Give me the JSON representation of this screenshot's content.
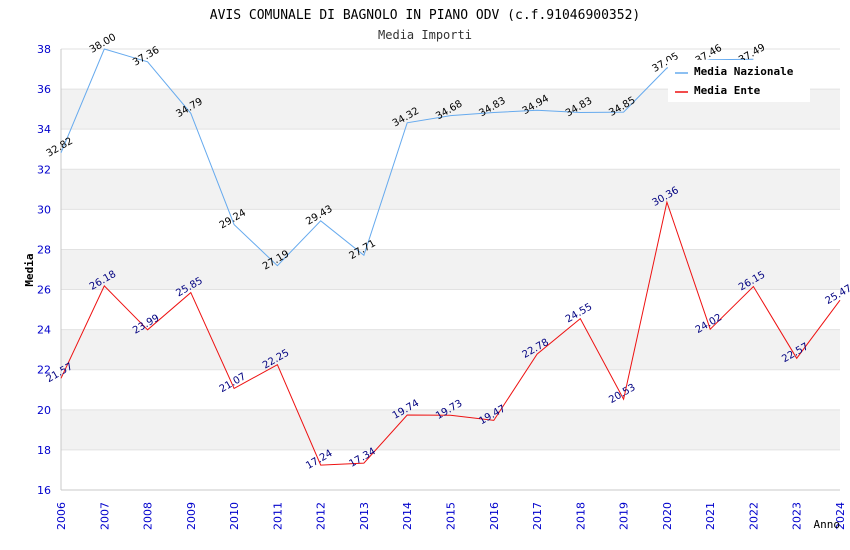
{
  "chart_data": {
    "type": "line",
    "title": "AVIS COMUNALE DI BAGNOLO IN PIANO ODV (c.f.91046900352)",
    "subtitle": "Media Importi",
    "xlabel": "Anno",
    "ylabel": "Media",
    "ylim": [
      16,
      38
    ],
    "yticks": [
      "16",
      "18",
      "20",
      "22",
      "24",
      "26",
      "28",
      "30",
      "32",
      "34",
      "36",
      "38"
    ],
    "categories": [
      "2006",
      "2007",
      "2008",
      "2009",
      "2010",
      "2011",
      "2012",
      "2013",
      "2014",
      "2015",
      "2016",
      "2017",
      "2018",
      "2019",
      "2020",
      "2021",
      "2022",
      "2023",
      "2024"
    ],
    "series": [
      {
        "name": "Media Nazionale",
        "color": "#66aaee",
        "values": [
          32.82,
          38.0,
          37.36,
          34.79,
          29.24,
          27.19,
          29.43,
          27.71,
          34.32,
          34.68,
          34.83,
          34.94,
          34.83,
          34.85,
          37.05,
          37.46,
          37.49,
          null,
          null
        ],
        "labels": [
          "32.82",
          "38.00",
          "37.36",
          "34.79",
          "29.24",
          "27.19",
          "29.43",
          "27.71",
          "34.32",
          "34.68",
          "34.83",
          "34.94",
          "34.83",
          "34.85",
          "37.05",
          "37.46",
          "37.49",
          "",
          ""
        ]
      },
      {
        "name": "Media Ente",
        "color": "#ee1111",
        "values": [
          21.57,
          26.18,
          23.99,
          25.85,
          21.07,
          22.25,
          17.24,
          17.34,
          19.74,
          19.73,
          19.47,
          22.78,
          24.55,
          20.53,
          30.36,
          24.02,
          26.15,
          22.57,
          25.47
        ],
        "labels": [
          "21.57",
          "26.18",
          "23.99",
          "25.85",
          "21.07",
          "22.25",
          "17.24",
          "17.34",
          "19.74",
          "19.73",
          "19.47",
          "22.78",
          "24.55",
          "20.53",
          "30.36",
          "24.02",
          "26.15",
          "22.57",
          "25.47"
        ]
      }
    ],
    "legend": "top-right",
    "grid": true
  }
}
